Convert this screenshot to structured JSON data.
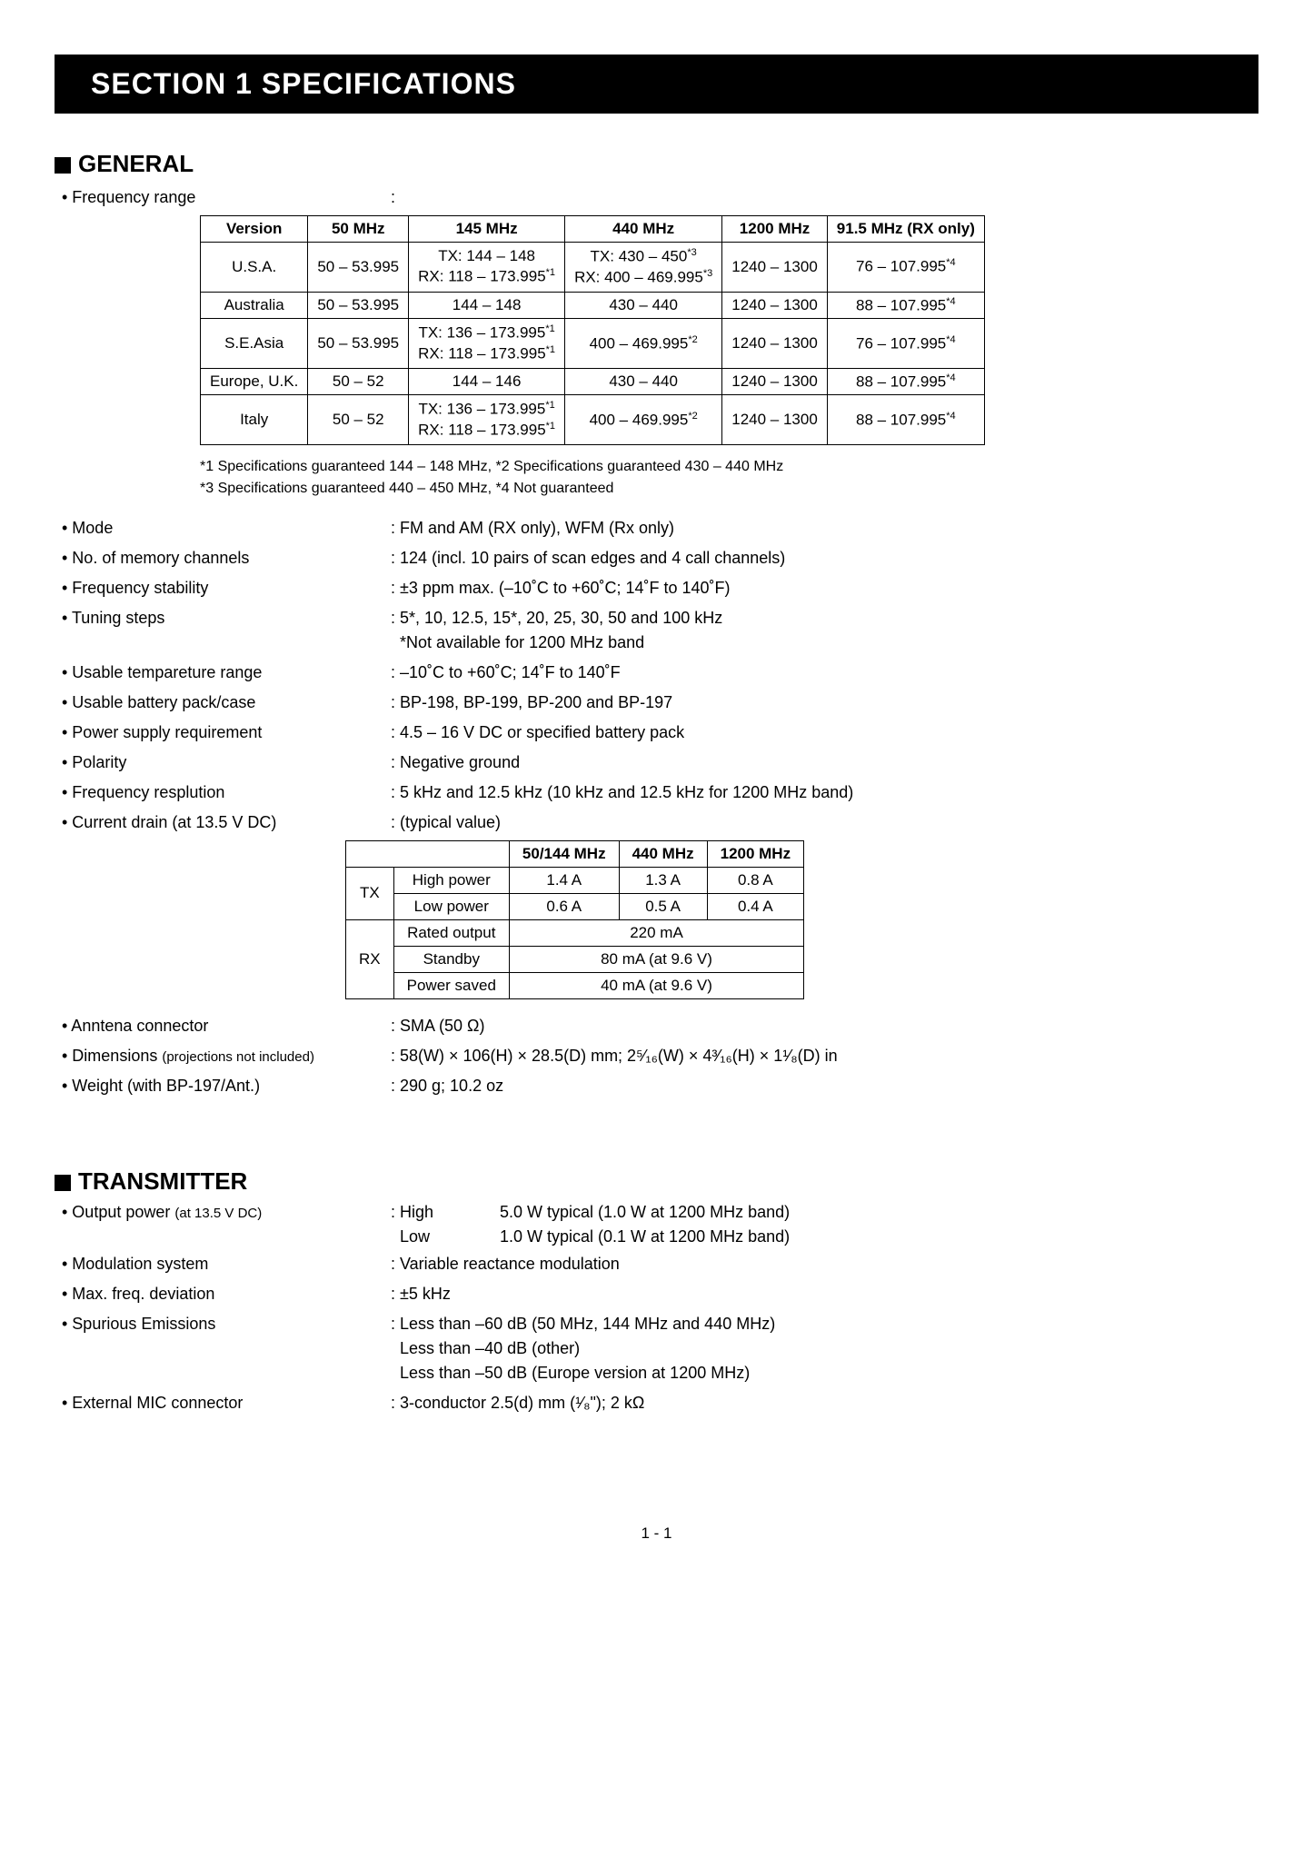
{
  "section_title": "SECTION 1      SPECIFICATIONS",
  "page_number": "1 - 1",
  "general": {
    "heading": "GENERAL",
    "freq_range_label": "• Frequency range",
    "freq_table": {
      "headers": [
        "Version",
        "50 MHz",
        "145 MHz",
        "440 MHz",
        "1200 MHz",
        "91.5 MHz (RX only)"
      ],
      "rows": [
        {
          "version": "U.S.A.",
          "c50": "50 – 53.995",
          "c145a": "TX: 144 – 148",
          "c145b": "RX: 118 – 173.995",
          "c145b_sup": "*1",
          "c440a": "TX: 430 – 450",
          "c440a_sup": "*3",
          "c440b": "RX: 400 – 469.995",
          "c440b_sup": "*3",
          "c1200": "1240 – 1300",
          "c915": "76 – 107.995",
          "c915_sup": "*4"
        },
        {
          "version": "Australia",
          "c50": "50 – 53.995",
          "c145": "144 – 148",
          "c440": "430 – 440",
          "c1200": "1240 – 1300",
          "c915": "88 – 107.995",
          "c915_sup": "*4"
        },
        {
          "version": "S.E.Asia",
          "c50": "50 – 53.995",
          "c145a": "TX: 136 – 173.995",
          "c145a_sup": "*1",
          "c145b": "RX: 118 – 173.995",
          "c145b_sup": "*1",
          "c440": "400 – 469.995",
          "c440_sup": "*2",
          "c1200": "1240 – 1300",
          "c915": "76 – 107.995",
          "c915_sup": "*4"
        },
        {
          "version": "Europe, U.K.",
          "c50": "50 – 52",
          "c145": "144 – 146",
          "c440": "430 – 440",
          "c1200": "1240 – 1300",
          "c915": "88 – 107.995",
          "c915_sup": "*4"
        },
        {
          "version": "Italy",
          "c50": "50 – 52",
          "c145a": "TX: 136 – 173.995",
          "c145a_sup": "*1",
          "c145b": "RX: 118 – 173.995",
          "c145b_sup": "*1",
          "c440": "400 – 469.995",
          "c440_sup": "*2",
          "c1200": "1240 – 1300",
          "c915": "88 – 107.995",
          "c915_sup": "*4"
        }
      ]
    },
    "footnote1a": "*1 Specifications guaranteed 144 – 148 MHz, ",
    "footnote1a_sup": "",
    "footnote1b": "*2 Specifications guaranteed 430 – 440 MHz",
    "footnote2a": "*3 Specifications guaranteed 440 – 450 MHz, ",
    "footnote2b": "*4 Not guaranteed",
    "specs": [
      {
        "label": "• Mode",
        "value": ": FM and AM (RX only), WFM (Rx only)"
      },
      {
        "label": "• No. of memory channels",
        "value": ": 124 (incl. 10 pairs of scan edges and 4 call channels)"
      },
      {
        "label": "• Frequency stability",
        "value": ": ±3 ppm max. (–10˚C to +60˚C; 14˚F to 140˚F)"
      },
      {
        "label": "• Tuning steps",
        "value": ": 5*, 10, 12.5, 15*, 20, 25, 30, 50 and 100 kHz",
        "value2": "  *Not available for 1200 MHz band"
      },
      {
        "label": "• Usable tempareture range",
        "value": ": –10˚C to +60˚C; 14˚F to 140˚F"
      },
      {
        "label": "• Usable battery pack/case",
        "value": ": BP-198, BP-199, BP-200 and BP-197"
      },
      {
        "label": "• Power supply requirement",
        "value": ": 4.5 – 16 V DC or specified battery pack"
      },
      {
        "label": "• Polarity",
        "value": ": Negative ground"
      },
      {
        "label": "• Frequency resplution",
        "value": ": 5 kHz and 12.5 kHz (10 kHz and 12.5 kHz for 1200 MHz band)"
      },
      {
        "label": "• Current drain (at 13.5 V DC)",
        "value": ": (typical value)"
      }
    ],
    "drain_table": {
      "headers": [
        "",
        "",
        "50/144 MHz",
        "440 MHz",
        "1200 MHz"
      ],
      "tx_label": "TX",
      "rx_label": "RX",
      "rows": [
        {
          "mode": "High power",
          "v1": "1.4 A",
          "v2": "1.3 A",
          "v3": "0.8 A"
        },
        {
          "mode": "Low power",
          "v1": "0.6 A",
          "v2": "0.5 A",
          "v3": "0.4 A"
        },
        {
          "mode": "Rated output",
          "span": "220 mA"
        },
        {
          "mode": "Standby",
          "span": "80 mA (at 9.6 V)"
        },
        {
          "mode": "Power saved",
          "span": "40 mA (at 9.6 V)"
        }
      ]
    },
    "specs2": [
      {
        "label": "• Anntena connector",
        "value": ": SMA (50 Ω)"
      },
      {
        "label": "• Dimensions (projections not included)",
        "value": ": 58(W) × 106(H) × 28.5(D) mm; 2⁵⁄₁₆(W) × 4³⁄₁₆(H) × 1¹⁄₈(D) in",
        "label_small": true
      },
      {
        "label": "• Weight (with BP-197/Ant.)",
        "value": ": 290 g; 10.2 oz"
      }
    ]
  },
  "transmitter": {
    "heading": "TRANSMITTER",
    "output_label": "• Output power ",
    "output_label_small": "(at 13.5 V DC)",
    "output_high_l": ": High",
    "output_high_v": "5.0 W typical (1.0 W at 1200 MHz band)",
    "output_low_l": "  Low",
    "output_low_v": "1.0 W typical (0.1 W at 1200 MHz band)",
    "specs": [
      {
        "label": "• Modulation system",
        "value": ": Variable reactance modulation"
      },
      {
        "label": "• Max. freq. deviation",
        "value": ": ±5 kHz"
      },
      {
        "label": "• Spurious Emissions",
        "value": ": Less than –60 dB (50 MHz, 144 MHz and 440 MHz)",
        "value2": "  Less than –40 dB (other)",
        "value3": "  Less than –50 dB (Europe version at 1200 MHz)"
      },
      {
        "label": "• External MIC connector",
        "value": ": 3-conductor 2.5(d) mm (¹⁄₈\"); 2 kΩ"
      }
    ]
  }
}
